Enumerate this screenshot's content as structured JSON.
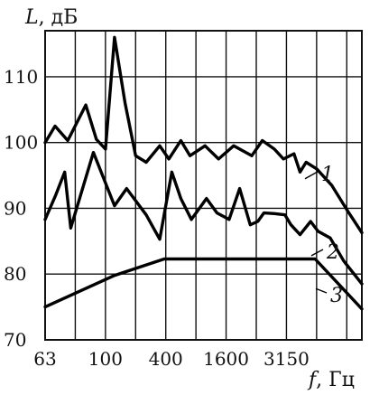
{
  "chart_data": {
    "type": "line",
    "title": "",
    "ylabel": {
      "symbol": "L",
      "unit": ", дБ"
    },
    "xlabel": {
      "symbol": "f",
      "unit": ", Гц"
    },
    "x_tick_labels": [
      "63",
      "100",
      "400",
      "1600",
      "3150"
    ],
    "y_tick_labels": [
      "70",
      "80",
      "90",
      "100",
      "110"
    ],
    "ylim": [
      70,
      117
    ],
    "grid": true,
    "series": [
      {
        "name": "1",
        "points": [
          [
            0,
            100
          ],
          [
            0.33,
            102.5
          ],
          [
            0.75,
            100.3
          ],
          [
            1.35,
            105.7
          ],
          [
            1.7,
            100.5
          ],
          [
            2,
            99
          ],
          [
            2.3,
            116
          ],
          [
            2.65,
            106
          ],
          [
            3,
            98
          ],
          [
            3.35,
            97
          ],
          [
            3.8,
            99.5
          ],
          [
            4.1,
            97.5
          ],
          [
            4.5,
            100.3
          ],
          [
            4.8,
            98
          ],
          [
            5.3,
            99.5
          ],
          [
            5.75,
            97.5
          ],
          [
            6.25,
            99.5
          ],
          [
            6.85,
            98
          ],
          [
            7.2,
            100.3
          ],
          [
            7.6,
            99
          ],
          [
            7.9,
            97.5
          ],
          [
            8.25,
            98.3
          ],
          [
            8.45,
            95.5
          ],
          [
            8.65,
            97
          ],
          [
            9,
            96
          ],
          [
            9.5,
            93.5
          ],
          [
            10,
            89.8
          ],
          [
            10.5,
            86.3
          ]
        ]
      },
      {
        "name": "2",
        "points": [
          [
            0,
            88.3
          ],
          [
            0.35,
            92
          ],
          [
            0.65,
            95.5
          ],
          [
            0.85,
            87
          ],
          [
            1.6,
            98.5
          ],
          [
            2.3,
            90.4
          ],
          [
            2.7,
            93
          ],
          [
            3.35,
            89
          ],
          [
            3.8,
            85.3
          ],
          [
            4.2,
            95.5
          ],
          [
            4.5,
            91.5
          ],
          [
            4.85,
            88.3
          ],
          [
            5.35,
            91.5
          ],
          [
            5.7,
            89.3
          ],
          [
            6.1,
            88.3
          ],
          [
            6.45,
            93
          ],
          [
            6.8,
            87.5
          ],
          [
            7.05,
            88
          ],
          [
            7.25,
            89.3
          ],
          [
            7.6,
            89.2
          ],
          [
            7.95,
            89
          ],
          [
            8.15,
            87.5
          ],
          [
            8.45,
            86
          ],
          [
            8.8,
            88
          ],
          [
            9.05,
            86.5
          ],
          [
            9.45,
            85.5
          ],
          [
            9.9,
            82
          ],
          [
            10.5,
            78.5
          ]
        ]
      },
      {
        "name": "3",
        "points": [
          [
            0,
            75
          ],
          [
            2.3,
            79.8
          ],
          [
            3.95,
            82.3
          ],
          [
            8.95,
            82.3
          ],
          [
            10.5,
            74.7
          ]
        ]
      }
    ]
  }
}
